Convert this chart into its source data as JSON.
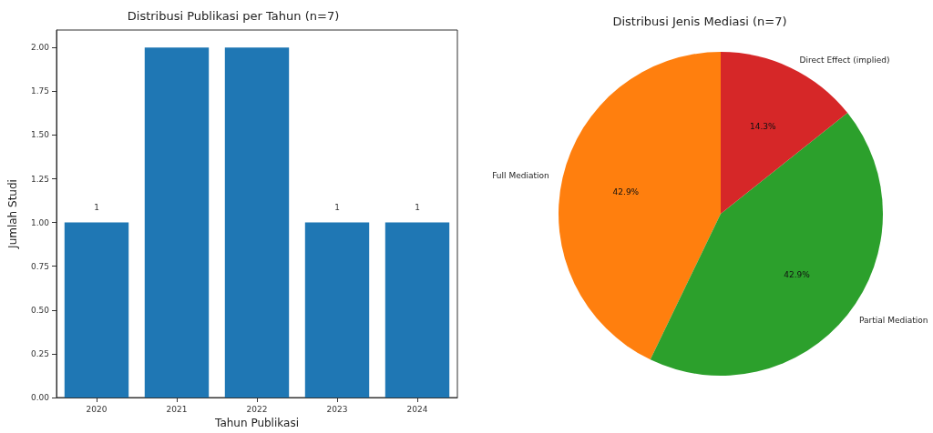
{
  "chart_data": [
    {
      "type": "bar",
      "title": "Distribusi Publikasi per Tahun (n=7)",
      "xlabel": "Tahun Publikasi",
      "ylabel": "Jumlah Studi",
      "categories": [
        "2020",
        "2021",
        "2022",
        "2023",
        "2024"
      ],
      "values": [
        1,
        2,
        2,
        1,
        1
      ],
      "color": "#1f77b4",
      "value_labels": [
        "1",
        null,
        null,
        "1",
        "1"
      ],
      "ylim": [
        0,
        2.1
      ],
      "yticks": [
        {
          "value": 0,
          "label": "0.00"
        },
        {
          "value": 0.25,
          "label": "0.25"
        },
        {
          "value": 0.5,
          "label": "0.50"
        },
        {
          "value": 0.75,
          "label": "0.75"
        },
        {
          "value": 1,
          "label": "1.00"
        },
        {
          "value": 1.25,
          "label": "1.25"
        },
        {
          "value": 1.5,
          "label": "1.50"
        },
        {
          "value": 1.75,
          "label": "1.75"
        },
        {
          "value": 2,
          "label": "2.00"
        }
      ],
      "grid": false,
      "legend": false
    },
    {
      "type": "pie",
      "title": "Distribusi Jenis Mediasi (n=7)",
      "categories": [
        "Full Mediation",
        "Partial Mediation",
        "Direct Effect (implied)"
      ],
      "values": [
        42.9,
        42.9,
        14.3
      ],
      "colors": [
        "#ff7f0e",
        "#2ca02c",
        "#d62728"
      ],
      "value_labels": [
        "42.9%",
        "42.9%",
        "14.3%"
      ],
      "legend": false
    }
  ]
}
